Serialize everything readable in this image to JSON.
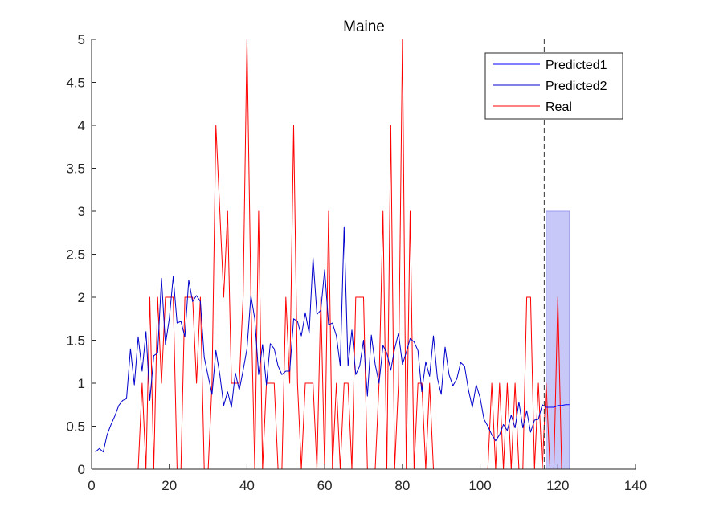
{
  "chart_data": {
    "type": "line",
    "title": "Maine",
    "xlabel": "",
    "ylabel": "",
    "xlim": [
      0,
      140
    ],
    "ylim": [
      0,
      5
    ],
    "xticks": [
      0,
      20,
      40,
      60,
      80,
      100,
      120,
      140
    ],
    "yticks": [
      0,
      0.5,
      1,
      1.5,
      2,
      2.5,
      3,
      3.5,
      4,
      4.5,
      5
    ],
    "vline_x": 116.5,
    "prediction_band": {
      "x_start": 117,
      "x_end": 123,
      "y_low": 0,
      "y_high": 3,
      "color": "#c8c8f8"
    },
    "legend_position": "top-right",
    "series": [
      {
        "name": "Predicted1",
        "color": "#0000ff",
        "x": [
          117,
          118,
          119,
          120,
          121,
          122,
          123
        ],
        "values": [
          0.72,
          0.72,
          0.72,
          0.74,
          0.74,
          0.75,
          0.75
        ]
      },
      {
        "name": "Predicted2",
        "color": "#0000cc",
        "x": [
          1,
          2,
          3,
          4,
          5,
          6,
          7,
          8,
          9,
          10,
          11,
          12,
          13,
          14,
          15,
          16,
          17,
          18,
          19,
          20,
          21,
          22,
          23,
          24,
          25,
          26,
          27,
          28,
          29,
          30,
          31,
          32,
          33,
          34,
          35,
          36,
          37,
          38,
          39,
          40,
          41,
          42,
          43,
          44,
          45,
          46,
          47,
          48,
          49,
          50,
          51,
          52,
          53,
          54,
          55,
          56,
          57,
          58,
          59,
          60,
          61,
          62,
          63,
          64,
          65,
          66,
          67,
          68,
          69,
          70,
          71,
          72,
          73,
          74,
          75,
          76,
          77,
          78,
          79,
          80,
          81,
          82,
          83,
          84,
          85,
          86,
          87,
          88,
          89,
          90,
          91,
          92,
          93,
          94,
          95,
          96,
          97,
          98,
          99,
          100,
          101,
          102,
          103,
          104,
          105,
          106,
          107,
          108,
          109,
          110,
          111,
          112,
          113,
          114,
          115,
          116,
          117
        ],
        "values": [
          0.2,
          0.24,
          0.2,
          0.4,
          0.52,
          0.62,
          0.74,
          0.8,
          0.82,
          1.4,
          0.98,
          1.54,
          1.14,
          1.6,
          0.8,
          1.32,
          1.35,
          2.22,
          1.45,
          1.75,
          2.24,
          1.7,
          1.72,
          1.54,
          2.2,
          1.95,
          2.02,
          1.95,
          1.3,
          1.08,
          0.87,
          1.38,
          1.1,
          0.74,
          0.9,
          0.72,
          1.12,
          0.92,
          1.15,
          1.4,
          2.02,
          1.75,
          1.1,
          1.45,
          0.98,
          1.46,
          1.4,
          1.2,
          1.1,
          1.14,
          1.14,
          1.75,
          1.72,
          1.55,
          1.82,
          1.58,
          2.46,
          1.8,
          1.85,
          2.32,
          1.68,
          1.7,
          1.55,
          1.2,
          2.82,
          1.2,
          1.62,
          1.1,
          1.2,
          1.5,
          0.85,
          1.56,
          1.22,
          1.0,
          1.44,
          1.35,
          1.15,
          1.4,
          1.58,
          1.22,
          1.36,
          1.52,
          1.48,
          1.38,
          0.9,
          1.25,
          1.08,
          1.55,
          1.06,
          0.87,
          1.42,
          1.1,
          0.97,
          1.05,
          1.24,
          1.2,
          0.92,
          0.72,
          0.98,
          0.83,
          0.58,
          0.5,
          0.4,
          0.33,
          0.4,
          0.52,
          0.45,
          0.63,
          0.48,
          0.78,
          0.48,
          0.68,
          0.43,
          0.57,
          0.58,
          0.75,
          0.72
        ]
      },
      {
        "name": "Real",
        "color": "#ff0000",
        "x": [
          1,
          2,
          3,
          4,
          5,
          6,
          7,
          8,
          9,
          10,
          11,
          12,
          13,
          14,
          15,
          16,
          17,
          18,
          19,
          20,
          21,
          22,
          23,
          24,
          25,
          26,
          27,
          28,
          29,
          30,
          31,
          32,
          33,
          34,
          35,
          36,
          37,
          38,
          39,
          40,
          41,
          42,
          43,
          44,
          45,
          46,
          47,
          48,
          49,
          50,
          51,
          52,
          53,
          54,
          55,
          56,
          57,
          58,
          59,
          60,
          61,
          62,
          63,
          64,
          65,
          66,
          67,
          68,
          69,
          70,
          71,
          72,
          73,
          74,
          75,
          76,
          77,
          78,
          79,
          80,
          81,
          82,
          83,
          84,
          85,
          86,
          87,
          88,
          89,
          90,
          91,
          92,
          93,
          94,
          95,
          96,
          97,
          98,
          99,
          100,
          101,
          102,
          103,
          104,
          105,
          106,
          107,
          108,
          109,
          110,
          111,
          112,
          113,
          114,
          115,
          116,
          117,
          118,
          119,
          120,
          121
        ],
        "values": [
          0,
          0,
          0,
          0,
          0,
          0,
          0,
          0,
          0,
          0,
          0,
          0,
          1,
          0,
          2,
          0,
          2,
          1,
          2,
          2,
          2,
          0,
          0,
          2,
          2,
          2,
          1,
          2,
          0,
          0,
          1,
          4,
          3,
          2,
          3,
          1,
          1,
          1,
          2,
          5,
          2,
          0,
          3,
          0,
          1,
          1,
          1,
          0,
          0,
          2,
          1,
          4,
          1,
          0,
          1,
          1,
          1,
          0,
          2,
          0,
          3,
          0,
          1,
          0,
          1,
          1,
          0,
          2,
          2,
          2,
          0,
          0,
          0,
          1,
          3,
          0,
          4,
          0,
          1,
          5,
          0,
          3,
          0,
          1,
          1,
          0,
          1,
          0,
          0,
          0,
          0,
          0,
          0,
          0,
          0,
          0,
          0,
          0,
          0,
          0,
          0,
          0,
          1,
          0,
          1,
          0,
          1,
          0,
          1,
          0,
          0,
          2,
          2,
          0,
          1,
          0,
          1,
          0,
          0,
          2,
          0
        ]
      }
    ]
  }
}
